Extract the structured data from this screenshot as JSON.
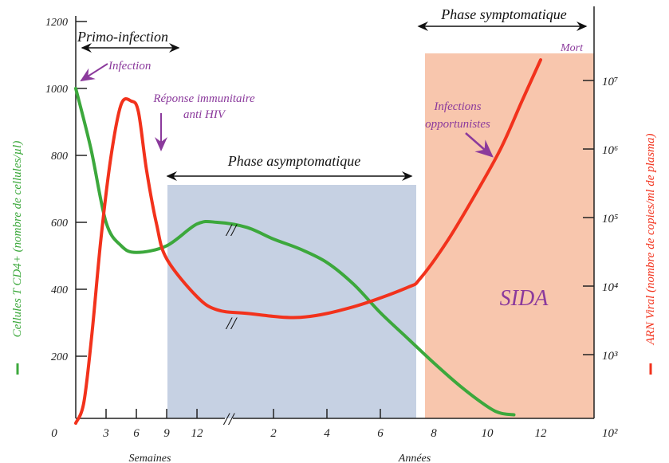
{
  "chart_data": {
    "type": "line",
    "colors": {
      "cd4": "#3ca83c",
      "viral": "#f2321c",
      "annotation": "#8b3a9c",
      "asymptomatic_band": "#c6d1e3",
      "aids_band": "#f8c6ad"
    },
    "y_left": {
      "label": "Cellules T CD4+ (nombre de cellules/µl)",
      "ticks": [
        200,
        400,
        600,
        800,
        1000,
        1200
      ],
      "range": [
        0,
        1200
      ]
    },
    "y_right": {
      "label": "ARN Viral (nombre de copies/ml de plasma)",
      "scale": "log",
      "ticks": [
        "10²",
        "10³",
        "10⁴",
        "10⁵",
        "10⁶",
        "10⁷"
      ],
      "range": [
        100,
        30000000
      ]
    },
    "x_axis": {
      "origin_label": "0",
      "weeks": {
        "label": "Semaines",
        "ticks": [
          "3",
          "6",
          "9",
          "12"
        ]
      },
      "years": {
        "label": "Années",
        "ticks": [
          "2",
          "4",
          "6",
          "8",
          "10",
          "12"
        ]
      },
      "axis_break": "//"
    },
    "series": [
      {
        "name": "Cellules T CD4+",
        "axis": "left",
        "points": [
          {
            "weeks": 0,
            "y": 1000
          },
          {
            "weeks": 1.5,
            "y": 820
          },
          {
            "weeks": 3,
            "y": 600
          },
          {
            "weeks": 4.5,
            "y": 530
          },
          {
            "weeks": 6,
            "y": 510
          },
          {
            "weeks": 9,
            "y": 530
          },
          {
            "weeks": 12,
            "y": 595
          },
          {
            "weeks": 14,
            "y": 600
          },
          {
            "years": 1,
            "y": 585
          },
          {
            "years": 2,
            "y": 550
          },
          {
            "years": 3,
            "y": 520
          },
          {
            "years": 4,
            "y": 480
          },
          {
            "years": 5,
            "y": 415
          },
          {
            "years": 6,
            "y": 330
          },
          {
            "years": 7,
            "y": 255
          },
          {
            "years": 8,
            "y": 180
          },
          {
            "years": 9,
            "y": 110
          },
          {
            "years": 10,
            "y": 50
          },
          {
            "years": 10.5,
            "y": 30
          },
          {
            "years": 11,
            "y": 25
          }
        ]
      },
      {
        "name": "ARN Viral",
        "axis": "right",
        "points": [
          {
            "weeks": 0,
            "y": 100
          },
          {
            "weeks": 0.8,
            "y": 200
          },
          {
            "weeks": 1.6,
            "y": 2000
          },
          {
            "weeks": 2.5,
            "y": 50000
          },
          {
            "weeks": 3.5,
            "y": 800000
          },
          {
            "weeks": 4.5,
            "y": 4500000
          },
          {
            "weeks": 5.5,
            "y": 5000000
          },
          {
            "weeks": 6.2,
            "y": 3500000
          },
          {
            "weeks": 7,
            "y": 500000
          },
          {
            "weeks": 8,
            "y": 80000
          },
          {
            "weeks": 9,
            "y": 25000
          },
          {
            "weeks": 12,
            "y": 7000
          },
          {
            "weeks": 14,
            "y": 4500
          },
          {
            "years": 1,
            "y": 4000
          },
          {
            "years": 3,
            "y": 3500
          },
          {
            "years": 5,
            "y": 5000
          },
          {
            "years": 7,
            "y": 9500
          },
          {
            "years": 7.5,
            "y": 13000
          },
          {
            "years": 8.5,
            "y": 45000
          },
          {
            "years": 9.5,
            "y": 200000
          },
          {
            "years": 10.5,
            "y": 1000000
          },
          {
            "years": 11.3,
            "y": 5000000
          },
          {
            "years": 12,
            "y": 20000000
          }
        ]
      }
    ],
    "annotations": {
      "primo": "Primo-infection",
      "infection": "Infection",
      "response_1": "Réponse immunitaire",
      "response_2": "anti HIV",
      "asymptomatic": "Phase asymptomatique",
      "symptomatic": "Phase symptomatique",
      "opportunistic_1": "Infections",
      "opportunistic_2": "opportunistes",
      "death": "Mort",
      "aids": "SIDA"
    }
  }
}
